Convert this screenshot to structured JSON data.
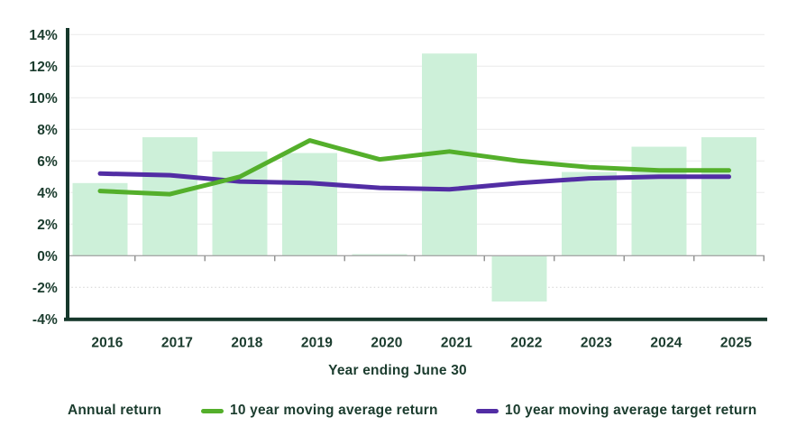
{
  "chart_data": {
    "type": "bar",
    "title": "",
    "categories": [
      "2016",
      "2017",
      "2018",
      "2019",
      "2020",
      "2021",
      "2022",
      "2023",
      "2024",
      "2025"
    ],
    "series": [
      {
        "name": "Annual return",
        "type": "bar",
        "color": "#CDF0D9",
        "values": [
          4.6,
          7.5,
          6.6,
          6.5,
          0.1,
          12.8,
          -2.9,
          5.3,
          6.9,
          7.5
        ]
      },
      {
        "name": "10 year moving average return",
        "type": "line",
        "color": "#54AF2B",
        "values": [
          4.1,
          3.9,
          5.0,
          7.3,
          6.1,
          6.6,
          6.0,
          5.6,
          5.4,
          5.4
        ]
      },
      {
        "name": "10 year moving average target return",
        "type": "line",
        "color": "#522DA4",
        "values": [
          5.2,
          5.1,
          4.7,
          4.6,
          4.3,
          4.2,
          4.6,
          4.9,
          5.0,
          5.0
        ]
      }
    ],
    "xlabel": "Year ending June 30",
    "ylabel": "",
    "ylim": [
      -4,
      14
    ],
    "ytick_step": 2,
    "ytick_suffix": "%",
    "ytick_labels": [
      "14%",
      "12%",
      "10%",
      "8%",
      "6%",
      "4%",
      "2%",
      "0%",
      "-2%",
      "-4%"
    ],
    "grid": true,
    "zero_line": true,
    "dotted_gridline_at": -2,
    "legend_position": "bottom"
  },
  "colors": {
    "text": "#1B3C2E",
    "axis": "#16382B",
    "grid": "#EDEDED",
    "zero_line": "#A9A9A9",
    "tick": "#8F8F8F",
    "dotted_grid": "#D8D8D8",
    "background": "#FFFFFF"
  }
}
